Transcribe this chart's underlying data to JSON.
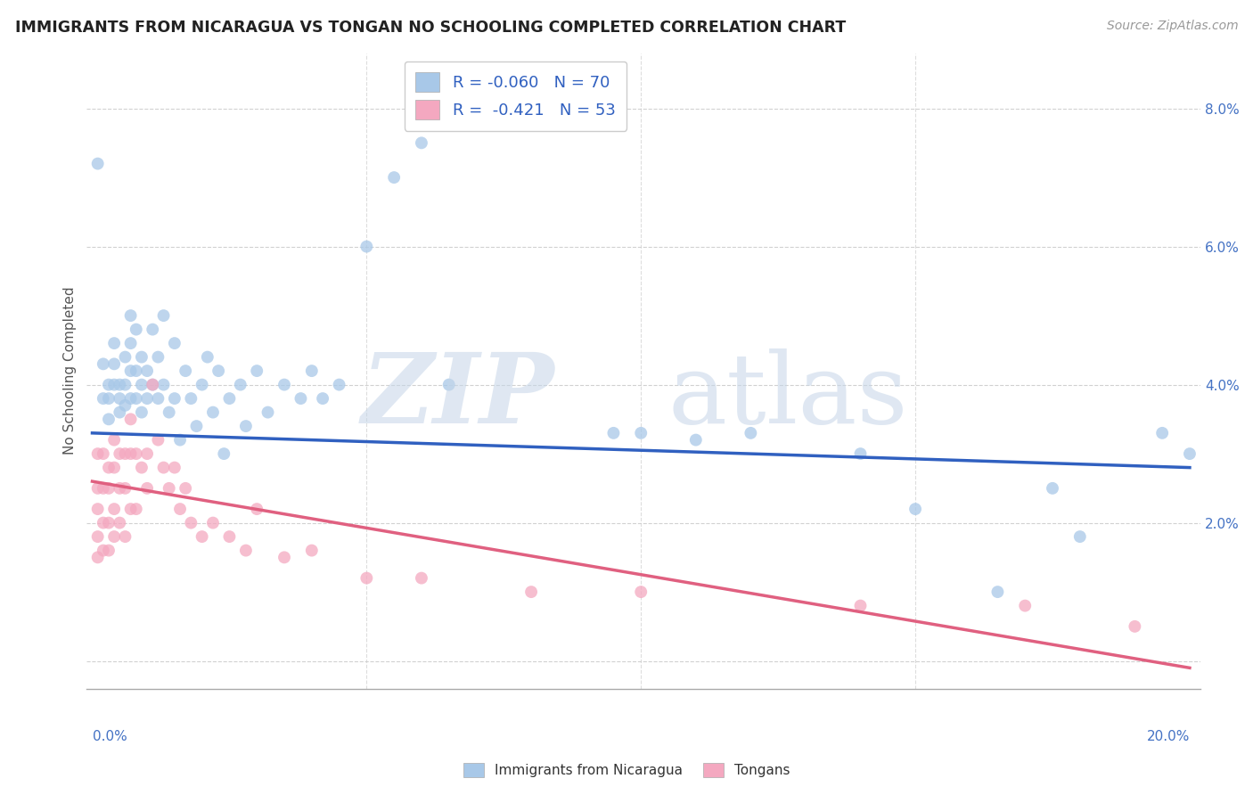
{
  "title": "IMMIGRANTS FROM NICARAGUA VS TONGAN NO SCHOOLING COMPLETED CORRELATION CHART",
  "source": "Source: ZipAtlas.com",
  "ylabel": "No Schooling Completed",
  "y_ticks": [
    0.0,
    0.02,
    0.04,
    0.06,
    0.08
  ],
  "y_tick_labels": [
    "",
    "2.0%",
    "4.0%",
    "6.0%",
    "8.0%"
  ],
  "x_ticks": [
    0.0,
    0.05,
    0.1,
    0.15,
    0.2
  ],
  "xlim": [
    -0.001,
    0.202
  ],
  "ylim": [
    -0.004,
    0.088
  ],
  "blue_R": -0.06,
  "blue_N": 70,
  "pink_R": -0.421,
  "pink_N": 53,
  "blue_color": "#A8C8E8",
  "pink_color": "#F4A8C0",
  "blue_line_color": "#3060C0",
  "pink_line_color": "#E06080",
  "legend_label_blue": "Immigrants from Nicaragua",
  "legend_label_pink": "Tongans",
  "background_color": "#FFFFFF",
  "blue_line_x0": 0.0,
  "blue_line_x1": 0.2,
  "blue_line_y0": 0.033,
  "blue_line_y1": 0.028,
  "pink_line_x0": 0.0,
  "pink_line_x1": 0.2,
  "pink_line_y0": 0.026,
  "pink_line_y1": -0.001,
  "blue_scatter_x": [
    0.001,
    0.002,
    0.002,
    0.003,
    0.003,
    0.003,
    0.004,
    0.004,
    0.004,
    0.005,
    0.005,
    0.005,
    0.006,
    0.006,
    0.006,
    0.007,
    0.007,
    0.007,
    0.007,
    0.008,
    0.008,
    0.008,
    0.009,
    0.009,
    0.009,
    0.01,
    0.01,
    0.011,
    0.011,
    0.012,
    0.012,
    0.013,
    0.013,
    0.014,
    0.015,
    0.015,
    0.016,
    0.017,
    0.018,
    0.019,
    0.02,
    0.021,
    0.022,
    0.023,
    0.024,
    0.025,
    0.027,
    0.028,
    0.03,
    0.032,
    0.035,
    0.038,
    0.04,
    0.042,
    0.045,
    0.05,
    0.055,
    0.06,
    0.065,
    0.095,
    0.1,
    0.11,
    0.12,
    0.14,
    0.15,
    0.165,
    0.175,
    0.18,
    0.195,
    0.2
  ],
  "blue_scatter_y": [
    0.072,
    0.038,
    0.043,
    0.04,
    0.038,
    0.035,
    0.043,
    0.046,
    0.04,
    0.04,
    0.038,
    0.036,
    0.044,
    0.04,
    0.037,
    0.05,
    0.046,
    0.042,
    0.038,
    0.048,
    0.042,
    0.038,
    0.044,
    0.04,
    0.036,
    0.042,
    0.038,
    0.048,
    0.04,
    0.044,
    0.038,
    0.05,
    0.04,
    0.036,
    0.046,
    0.038,
    0.032,
    0.042,
    0.038,
    0.034,
    0.04,
    0.044,
    0.036,
    0.042,
    0.03,
    0.038,
    0.04,
    0.034,
    0.042,
    0.036,
    0.04,
    0.038,
    0.042,
    0.038,
    0.04,
    0.06,
    0.07,
    0.075,
    0.04,
    0.033,
    0.033,
    0.032,
    0.033,
    0.03,
    0.022,
    0.01,
    0.025,
    0.018,
    0.033,
    0.03
  ],
  "pink_scatter_x": [
    0.001,
    0.001,
    0.001,
    0.001,
    0.001,
    0.002,
    0.002,
    0.002,
    0.002,
    0.003,
    0.003,
    0.003,
    0.003,
    0.004,
    0.004,
    0.004,
    0.004,
    0.005,
    0.005,
    0.005,
    0.006,
    0.006,
    0.006,
    0.007,
    0.007,
    0.007,
    0.008,
    0.008,
    0.009,
    0.01,
    0.01,
    0.011,
    0.012,
    0.013,
    0.014,
    0.015,
    0.016,
    0.017,
    0.018,
    0.02,
    0.022,
    0.025,
    0.028,
    0.03,
    0.035,
    0.04,
    0.05,
    0.06,
    0.08,
    0.1,
    0.14,
    0.17,
    0.19
  ],
  "pink_scatter_y": [
    0.03,
    0.025,
    0.022,
    0.018,
    0.015,
    0.03,
    0.025,
    0.02,
    0.016,
    0.028,
    0.025,
    0.02,
    0.016,
    0.032,
    0.028,
    0.022,
    0.018,
    0.03,
    0.025,
    0.02,
    0.03,
    0.025,
    0.018,
    0.035,
    0.03,
    0.022,
    0.03,
    0.022,
    0.028,
    0.03,
    0.025,
    0.04,
    0.032,
    0.028,
    0.025,
    0.028,
    0.022,
    0.025,
    0.02,
    0.018,
    0.02,
    0.018,
    0.016,
    0.022,
    0.015,
    0.016,
    0.012,
    0.012,
    0.01,
    0.01,
    0.008,
    0.008,
    0.005
  ]
}
